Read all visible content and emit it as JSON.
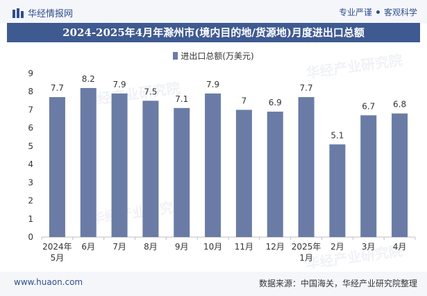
{
  "header": {
    "brand": "华经情报网",
    "tag_left": "专业严谨",
    "tag_right": "客观科学"
  },
  "title": "2024-2025年4月年滁州市(境内目的地/货源地)月度进出口总额",
  "legend_label": "进出口总额(万美元)",
  "watermark": "华经产业研究院",
  "footer": {
    "left": "www.huaon.com",
    "right": "数据来源：中国海关，华经产业研究院整理"
  },
  "chart_data": {
    "type": "bar",
    "title": "2024-2025年4月年滁州市(境内目的地/货源地)月度进出口总额",
    "categories": [
      "2024年\n5月",
      "6月",
      "7月",
      "8月",
      "9月",
      "10月",
      "11月",
      "12月",
      "2025年\n1月",
      "2月",
      "3月",
      "4月"
    ],
    "series": [
      {
        "name": "进出口总额(万美元)",
        "values": [
          7.7,
          8.2,
          7.9,
          7.5,
          7.1,
          7.9,
          7,
          6.9,
          7.7,
          5.1,
          6.7,
          6.8
        ]
      }
    ],
    "value_labels": [
      "7.7",
      "8.2",
      "7.9",
      "7.5",
      "7.1",
      "7.9",
      "7",
      "6.9",
      "7.7",
      "5.1",
      "6.7",
      "6.8"
    ],
    "ylim": [
      0,
      9
    ],
    "yticks": [
      0,
      1,
      2,
      3,
      4,
      5,
      6,
      7,
      8,
      9
    ],
    "colors": {
      "bar": "#6a7ca6",
      "title_bg": "#3f5a91"
    }
  }
}
